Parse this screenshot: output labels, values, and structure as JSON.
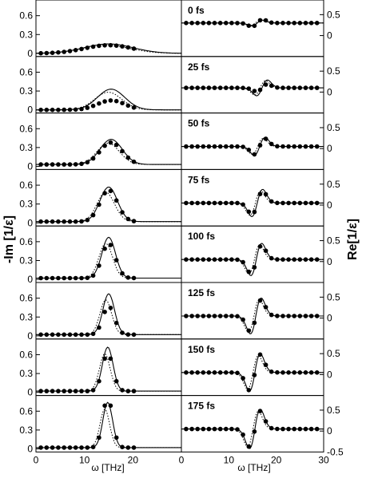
{
  "chart_data": {
    "type": "line",
    "figure": {
      "left_ylabel": "-Im [1/ε]",
      "right_ylabel": "Re[1/ε]",
      "xlabel": "ω [THz]",
      "xlim": [
        0,
        30
      ],
      "left_ylim": [
        -0.05,
        0.85
      ],
      "right_ylim": [
        -0.5,
        0.85
      ],
      "left_xticks": [
        "0",
        "10",
        "20"
      ],
      "right_xticks": [
        "0",
        "10",
        "20",
        "30"
      ],
      "left_yticks": [
        "0",
        "0.3",
        "0.6"
      ],
      "right_yticks": [
        "0",
        "0.5"
      ],
      "right_ytick_bottom": "-0.5",
      "left_ytick_values": [
        0,
        0.3,
        0.6
      ],
      "right_ytick_values": [
        0,
        0.5
      ],
      "right_ytick_bottom_value": -0.5
    },
    "panels": [
      {
        "label": "0 fs",
        "im": {
          "peak": 15.0,
          "amp": 0.15,
          "width": 5.0,
          "base": 0.0,
          "pts_amp": 0.13
        },
        "re": {
          "center": 16.0,
          "amp": 0.08,
          "base": 0.3,
          "pts_amp": 0.1
        }
      },
      {
        "label": "25 fs",
        "im": {
          "peak": 15.5,
          "amp": 0.33,
          "width": 2.8,
          "base": 0.0,
          "pts_amp": 0.15
        },
        "re": {
          "center": 17.0,
          "amp": 0.22,
          "base": 0.1,
          "pts_amp": 0.1
        }
      },
      {
        "label": "50 fs",
        "im": {
          "peak": 15.5,
          "amp": 0.4,
          "width": 2.3,
          "base": 0.03,
          "pts_amp": 0.35
        },
        "re": {
          "center": 16.5,
          "amp": 0.25,
          "base": 0.05,
          "pts_amp": 0.22
        }
      },
      {
        "label": "75 fs",
        "im": {
          "peak": 15.0,
          "amp": 0.55,
          "width": 1.8,
          "base": 0.02,
          "pts_amp": 0.5
        },
        "re": {
          "center": 16.0,
          "amp": 0.38,
          "base": 0.05,
          "pts_amp": 0.33
        }
      },
      {
        "label": "100 fs",
        "im": {
          "peak": 15.0,
          "amp": 0.65,
          "width": 1.4,
          "base": 0.02,
          "pts_amp": 0.55
        },
        "re": {
          "center": 15.8,
          "amp": 0.45,
          "base": 0.05,
          "pts_amp": 0.4
        }
      },
      {
        "label": "125 fs",
        "im": {
          "peak": 15.0,
          "amp": 0.65,
          "width": 1.2,
          "base": 0.02,
          "pts_amp": 0.45
        },
        "re": {
          "center": 15.7,
          "amp": 0.5,
          "base": 0.05,
          "pts_amp": 0.45
        }
      },
      {
        "label": "150 fs",
        "im": {
          "peak": 14.8,
          "amp": 0.7,
          "width": 1.1,
          "base": 0.02,
          "pts_amp": 0.6
        },
        "re": {
          "center": 15.5,
          "amp": 0.52,
          "base": 0.05,
          "pts_amp": 0.5
        }
      },
      {
        "label": "175 fs",
        "im": {
          "peak": 14.8,
          "amp": 0.72,
          "width": 1.0,
          "base": 0.02,
          "pts_amp": 0.8
        },
        "re": {
          "center": 15.5,
          "amp": 0.55,
          "base": 0.05,
          "pts_amp": 0.5
        }
      }
    ]
  }
}
